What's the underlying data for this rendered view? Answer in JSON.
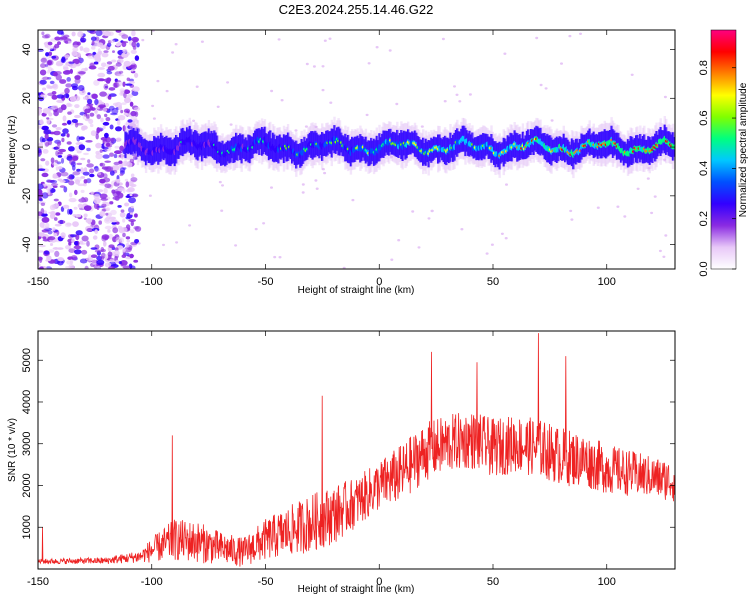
{
  "figure_title": "C2E3.2024.255.14.46.G22",
  "chart_data": [
    {
      "type": "heatmap",
      "title": "C2E3.2024.255.14.46.G22",
      "xlabel": "Height of straight line (km)",
      "ylabel": "Frequency (Hz)",
      "xlim": [
        -150,
        130
      ],
      "ylim": [
        -50,
        48
      ],
      "xticks": [
        -150,
        -100,
        -50,
        0,
        50,
        100
      ],
      "yticks": [
        -40,
        -20,
        0,
        20,
        40
      ],
      "colorbar": {
        "label": "Normalized spectral amplitude",
        "range": [
          0,
          0.95
        ],
        "ticks": [
          0.0,
          0.2,
          0.4,
          0.6,
          0.8
        ],
        "tick_labels": [
          "0.0",
          "0.2",
          "0.4",
          "0.6",
          "0.8"
        ],
        "colormap": [
          "#ffffff",
          "#e8c8f8",
          "#8a2be2",
          "#3200ff",
          "#0050ff",
          "#00c8ff",
          "#00ff80",
          "#80ff00",
          "#ffff00",
          "#ff8000",
          "#ff0000",
          "#ff0080"
        ]
      },
      "description_of_signal": {
        "noise_region_x": [
          -150,
          -110
        ],
        "band_center_y": 0,
        "band_halfwidth_y": 4
      }
    },
    {
      "type": "line",
      "xlabel": "Height of straight line (km)",
      "ylabel": "SNR (10 * v/v)",
      "xlim": [
        -150,
        130
      ],
      "ylim": [
        0,
        5700
      ],
      "xticks": [
        -150,
        -100,
        -50,
        0,
        50,
        100
      ],
      "yticks": [
        1000,
        2000,
        3000,
        4000,
        5000
      ],
      "color": "#ee2222",
      "envelope": {
        "x": [
          -150,
          -120,
          -105,
          -100,
          -90,
          -80,
          -70,
          -60,
          -50,
          -40,
          -30,
          -20,
          -10,
          0,
          10,
          20,
          30,
          40,
          50,
          60,
          70,
          80,
          90,
          100,
          110,
          120,
          130
        ],
        "mean": [
          180,
          200,
          300,
          450,
          700,
          650,
          500,
          400,
          700,
          900,
          1100,
          1300,
          1600,
          2000,
          2300,
          2800,
          3000,
          3100,
          2900,
          3000,
          2900,
          2700,
          2600,
          2400,
          2300,
          2200,
          2100
        ],
        "spread": [
          60,
          80,
          150,
          300,
          500,
          500,
          400,
          350,
          500,
          600,
          700,
          700,
          600,
          600,
          700,
          700,
          700,
          700,
          700,
          700,
          700,
          700,
          650,
          600,
          550,
          500,
          500
        ]
      },
      "spikes": [
        {
          "x": -148,
          "y": 1000
        },
        {
          "x": -91,
          "y": 3200
        },
        {
          "x": -25,
          "y": 4150
        },
        {
          "x": 23,
          "y": 5200
        },
        {
          "x": 43,
          "y": 4950
        },
        {
          "x": 70,
          "y": 5650
        },
        {
          "x": 82,
          "y": 5100
        }
      ]
    }
  ]
}
